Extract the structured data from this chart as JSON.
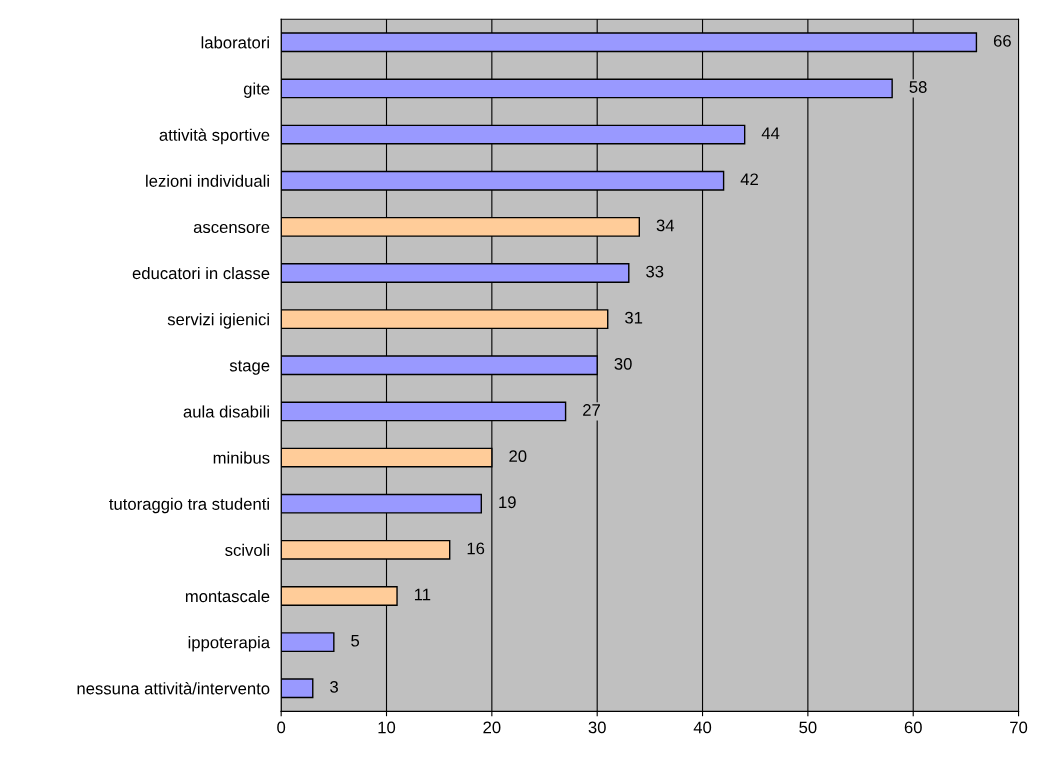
{
  "chart_data": {
    "type": "bar",
    "orientation": "horizontal",
    "categories": [
      "laboratori",
      "gite",
      "attività sportive",
      "lezioni individuali",
      "ascensore",
      "educatori in classe",
      "servizi igienici",
      "stage",
      "aula disabili",
      "minibus",
      "tutoraggio tra studenti",
      "scivoli",
      "montascale",
      "ippoterapia",
      "nessuna attività/intervento"
    ],
    "values": [
      66,
      58,
      44,
      42,
      34,
      33,
      31,
      30,
      27,
      20,
      19,
      16,
      11,
      5,
      3
    ],
    "colors": [
      "#9999ff",
      "#9999ff",
      "#9999ff",
      "#9999ff",
      "#ffcc99",
      "#9999ff",
      "#ffcc99",
      "#9999ff",
      "#9999ff",
      "#ffcc99",
      "#9999ff",
      "#ffcc99",
      "#ffcc99",
      "#9999ff",
      "#9999ff"
    ],
    "xlim": [
      0,
      70
    ],
    "xticks": [
      0,
      10,
      20,
      30,
      40,
      50,
      60,
      70
    ],
    "grid": "x",
    "data_labels": true,
    "legend": false
  }
}
